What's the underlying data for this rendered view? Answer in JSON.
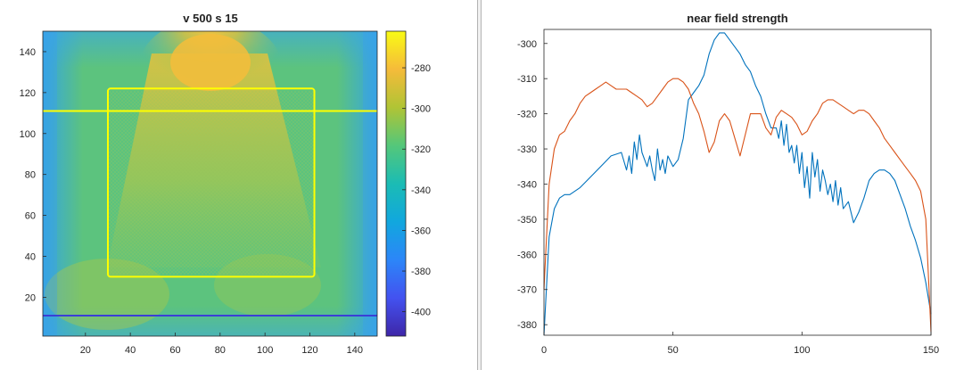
{
  "heatmap_panel": {
    "title": "v 500 s 15",
    "colormap": "parula",
    "chart_data": {
      "type": "heatmap",
      "title": "v 500 s 15",
      "xlabel": "",
      "ylabel": "",
      "xlim": [
        1,
        150
      ],
      "ylim": [
        1,
        150
      ],
      "x_ticks": [
        20,
        40,
        60,
        80,
        100,
        120,
        140
      ],
      "y_ticks": [
        20,
        40,
        60,
        80,
        100,
        120,
        140
      ],
      "colorbar": {
        "clim": [
          -412,
          -262
        ],
        "ticks": [
          -280,
          -300,
          -320,
          -340,
          -360,
          -380,
          -400
        ]
      },
      "overlays": [
        {
          "name": "rectangle",
          "color": "#ffff00",
          "x": [
            30,
            122
          ],
          "y": [
            30,
            122
          ]
        },
        {
          "name": "horizontal line upper",
          "color": "#ffff00",
          "y": 111
        },
        {
          "name": "horizontal line lower",
          "color": "#3a3fd6",
          "y": 11
        }
      ]
    }
  },
  "line_panel": {
    "title": "near field strength",
    "chart_data": {
      "type": "line",
      "title": "near field strength",
      "xlabel": "",
      "ylabel": "",
      "xlim": [
        0,
        150
      ],
      "ylim": [
        -383,
        -296
      ],
      "x_ticks": [
        0,
        50,
        100,
        150
      ],
      "y_ticks": [
        -300,
        -310,
        -320,
        -330,
        -340,
        -350,
        -360,
        -370,
        -380
      ],
      "grid": false,
      "series": [
        {
          "color": "#0072bd",
          "x": [
            0,
            2,
            4,
            6,
            8,
            10,
            14,
            18,
            22,
            26,
            30,
            32,
            33,
            34,
            35,
            36,
            37,
            38,
            39,
            40,
            41,
            42,
            43,
            44,
            45,
            46,
            47,
            48,
            50,
            52,
            54,
            56,
            58,
            60,
            62,
            64,
            66,
            68,
            70,
            72,
            74,
            76,
            78,
            80,
            82,
            84,
            86,
            88,
            90,
            91,
            92,
            93,
            94,
            95,
            96,
            97,
            98,
            99,
            100,
            101,
            102,
            103,
            104,
            105,
            106,
            107,
            108,
            109,
            110,
            111,
            112,
            113,
            114,
            115,
            116,
            118,
            120,
            122,
            124,
            126,
            128,
            130,
            132,
            134,
            136,
            138,
            140,
            142,
            144,
            146,
            148,
            150
          ],
          "y": [
            -383,
            -355,
            -347,
            -344,
            -343,
            -343,
            -341,
            -338,
            -335,
            -332,
            -331,
            -336,
            -332,
            -337,
            -328,
            -333,
            -326,
            -331,
            -333,
            -335,
            -332,
            -336,
            -339,
            -330,
            -336,
            -333,
            -337,
            -332,
            -335,
            -333,
            -327,
            -316,
            -314,
            -312,
            -309,
            -303,
            -299,
            -297,
            -297,
            -299,
            -301,
            -303,
            -306,
            -308,
            -312,
            -315,
            -320,
            -324,
            -324,
            -327,
            -322,
            -329,
            -323,
            -331,
            -329,
            -334,
            -329,
            -337,
            -331,
            -341,
            -335,
            -344,
            -331,
            -338,
            -333,
            -342,
            -336,
            -339,
            -343,
            -340,
            -345,
            -339,
            -346,
            -341,
            -347,
            -345,
            -351,
            -348,
            -344,
            -339,
            -337,
            -336,
            -336,
            -337,
            -339,
            -343,
            -347,
            -352,
            -356,
            -361,
            -368,
            -377
          ]
        },
        {
          "color": "#d95319",
          "x": [
            0,
            2,
            4,
            6,
            8,
            10,
            12,
            14,
            16,
            18,
            20,
            22,
            24,
            26,
            28,
            30,
            32,
            34,
            36,
            38,
            40,
            42,
            44,
            46,
            48,
            50,
            52,
            54,
            56,
            58,
            60,
            62,
            64,
            66,
            68,
            70,
            72,
            74,
            76,
            78,
            80,
            82,
            84,
            86,
            88,
            90,
            92,
            94,
            96,
            98,
            100,
            102,
            104,
            106,
            108,
            110,
            112,
            114,
            116,
            118,
            120,
            122,
            124,
            126,
            128,
            130,
            132,
            134,
            136,
            138,
            140,
            142,
            144,
            146,
            148,
            150
          ],
          "y": [
            -370,
            -340,
            -330,
            -326,
            -325,
            -322,
            -320,
            -317,
            -315,
            -314,
            -313,
            -312,
            -311,
            -312,
            -313,
            -313,
            -313,
            -314,
            -315,
            -316,
            -318,
            -317,
            -315,
            -313,
            -311,
            -310,
            -310,
            -311,
            -313,
            -317,
            -320,
            -325,
            -331,
            -328,
            -322,
            -320,
            -322,
            -327,
            -332,
            -326,
            -320,
            -320,
            -320,
            -324,
            -326,
            -321,
            -319,
            -320,
            -321,
            -323,
            -326,
            -325,
            -322,
            -320,
            -317,
            -316,
            -316,
            -317,
            -318,
            -319,
            -320,
            -319,
            -319,
            -320,
            -322,
            -324,
            -327,
            -329,
            -331,
            -333,
            -335,
            -337,
            -339,
            -342,
            -350,
            -382
          ]
        }
      ]
    }
  }
}
